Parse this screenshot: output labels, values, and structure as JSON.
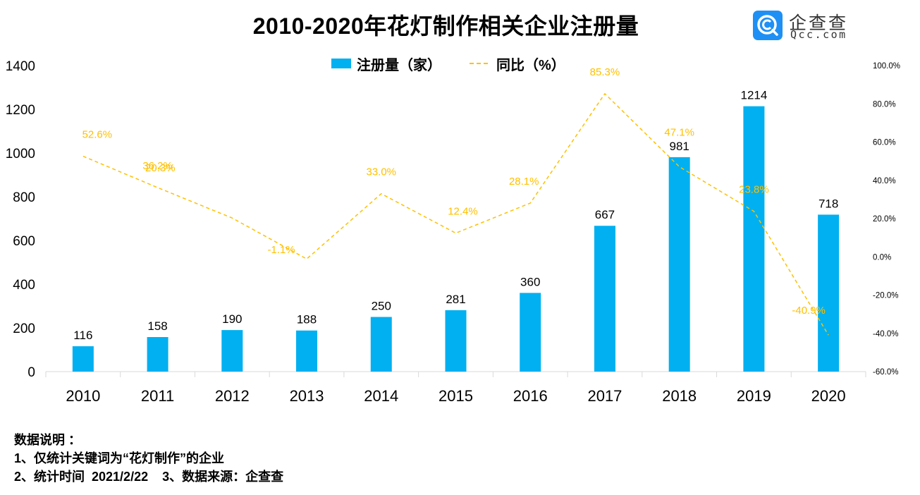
{
  "title": "2010-2020年花灯制作相关企业注册量",
  "logo": {
    "icon": "qcc-logo-icon",
    "name_cn": "企查查",
    "name_en": "Qcc.com",
    "color": "#1e90f5"
  },
  "legend": [
    {
      "label": "注册量（家）",
      "type": "bar",
      "color": "#00b0f0"
    },
    {
      "label": "同比（%）",
      "type": "dashed-line",
      "color": "#ffc000"
    }
  ],
  "notes": {
    "heading": "数据说明 ：",
    "line1": "1、仅统计关键词为“花灯制作”的企业",
    "line2": "2、统计时间  2021/2/22    3、数据来源：企查查"
  },
  "chart_data": {
    "type": "bar",
    "title": "2010-2020年花灯制作相关企业注册量",
    "categories": [
      "2010",
      "2011",
      "2012",
      "2013",
      "2014",
      "2015",
      "2016",
      "2017",
      "2018",
      "2019",
      "2020"
    ],
    "series": [
      {
        "name": "注册量（家）",
        "type": "bar",
        "axis": "left",
        "color": "#00b0f0",
        "values": [
          116,
          158,
          190,
          188,
          250,
          281,
          360,
          667,
          981,
          1214,
          718
        ],
        "labels": [
          "116",
          "158",
          "190",
          "188",
          "250",
          "281",
          "360",
          "667",
          "981",
          "1214",
          "718"
        ]
      },
      {
        "name": "同比（%）",
        "type": "line",
        "style": "dashed",
        "axis": "right",
        "color": "#ffc000",
        "values": [
          52.6,
          36.2,
          20.3,
          -1.1,
          33.0,
          12.4,
          28.1,
          85.3,
          47.1,
          23.8,
          -40.9
        ],
        "labels": [
          "52.6%",
          "36.2%",
          "20.3%",
          "-1.1%",
          "33.0%",
          "12.4%",
          "28.1%",
          "85.3%",
          "47.1%",
          "23.8%",
          "-40.9%"
        ]
      }
    ],
    "y_left": {
      "range": [
        0,
        1400
      ],
      "ticks": [
        "0",
        "200",
        "400",
        "600",
        "800",
        "1000",
        "1200",
        "1400"
      ],
      "tick_values": [
        0,
        200,
        400,
        600,
        800,
        1000,
        1200,
        1400
      ]
    },
    "y_right": {
      "range": [
        -60,
        100
      ],
      "ticks": [
        "-60.0%",
        "-40.0%",
        "-20.0%",
        "0.0%",
        "20.0%",
        "40.0%",
        "60.0%",
        "80.0%",
        "100.0%"
      ],
      "tick_values": [
        -60,
        -40,
        -20,
        0,
        20,
        40,
        60,
        80,
        100
      ]
    },
    "xlabel": "",
    "ylabel": "",
    "grid": false,
    "legend_position": "top-center"
  }
}
